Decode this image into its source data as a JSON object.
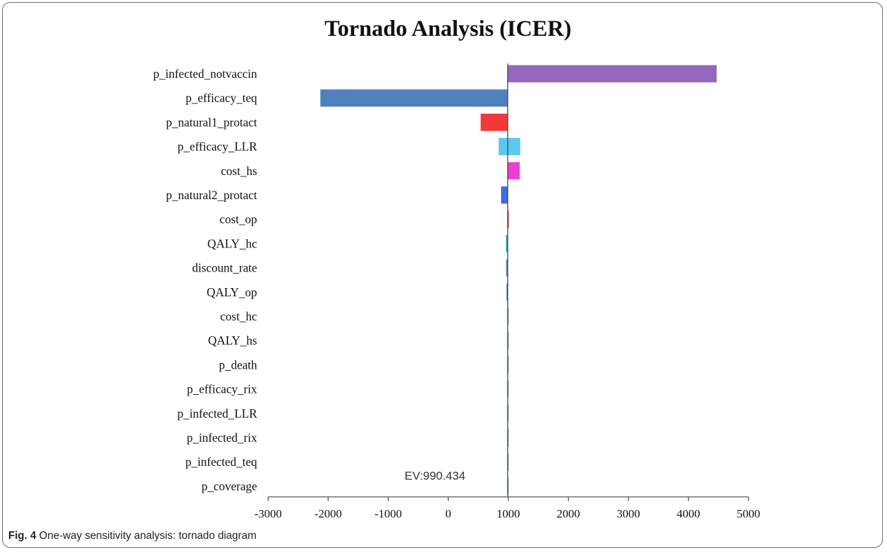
{
  "caption": {
    "label": "Fig. 4",
    "text": "One-way sensitivity analysis: tornado diagram"
  },
  "chart_data": {
    "type": "bar",
    "orientation": "horizontal",
    "title": "Tornado Analysis (ICER)",
    "xlabel": "",
    "ylabel": "",
    "xlim": [
      -3000,
      5000
    ],
    "xticks": [
      -3000,
      -2000,
      -1000,
      0,
      1000,
      2000,
      3000,
      4000,
      5000
    ],
    "grid": false,
    "baseline_label": "EV:990.434",
    "baseline_value": 990.434,
    "bars": [
      {
        "label": "p_infected_notvaccin",
        "low": 990.434,
        "high": 4470,
        "color": "#9467bd"
      },
      {
        "label": "p_efficacy_teq",
        "low": -2130,
        "high": 990.434,
        "color": "#4f81bd"
      },
      {
        "label": "p_natural1_protact",
        "low": 540,
        "high": 990.434,
        "color": "#f03a3a"
      },
      {
        "label": "p_efficacy_LLR",
        "low": 840,
        "high": 1200,
        "color": "#5bc8f0"
      },
      {
        "label": "cost_hs",
        "low": 990.434,
        "high": 1190,
        "color": "#f03cd2"
      },
      {
        "label": "p_natural2_protact",
        "low": 880,
        "high": 990.434,
        "color": "#3c6edc"
      },
      {
        "label": "cost_op",
        "low": 990.434,
        "high": 1010,
        "color": "#c0504d"
      },
      {
        "label": "QALY_hc",
        "low": 960,
        "high": 990.434,
        "color": "#4bacc6"
      },
      {
        "label": "discount_rate",
        "low": 965,
        "high": 990.434,
        "color": "#4f81bd"
      },
      {
        "label": "QALY_op",
        "low": 970,
        "high": 990.434,
        "color": "#4f81bd"
      },
      {
        "label": "cost_hc",
        "low": 990.434,
        "high": 990.434,
        "color": "#4f81bd"
      },
      {
        "label": "QALY_hs",
        "low": 990.434,
        "high": 990.434,
        "color": "#4f81bd"
      },
      {
        "label": "p_death",
        "low": 990.434,
        "high": 990.434,
        "color": "#4f81bd"
      },
      {
        "label": "p_efficacy_rix",
        "low": 990.434,
        "high": 990.434,
        "color": "#4f81bd"
      },
      {
        "label": "p_infected_LLR",
        "low": 990.434,
        "high": 990.434,
        "color": "#4f81bd"
      },
      {
        "label": "p_infected_rix",
        "low": 990.434,
        "high": 990.434,
        "color": "#4f81bd"
      },
      {
        "label": "p_infected_teq",
        "low": 990.434,
        "high": 990.434,
        "color": "#4f81bd"
      },
      {
        "label": "p_coverage",
        "low": 990.434,
        "high": 990.434,
        "color": "#4f81bd"
      }
    ]
  }
}
